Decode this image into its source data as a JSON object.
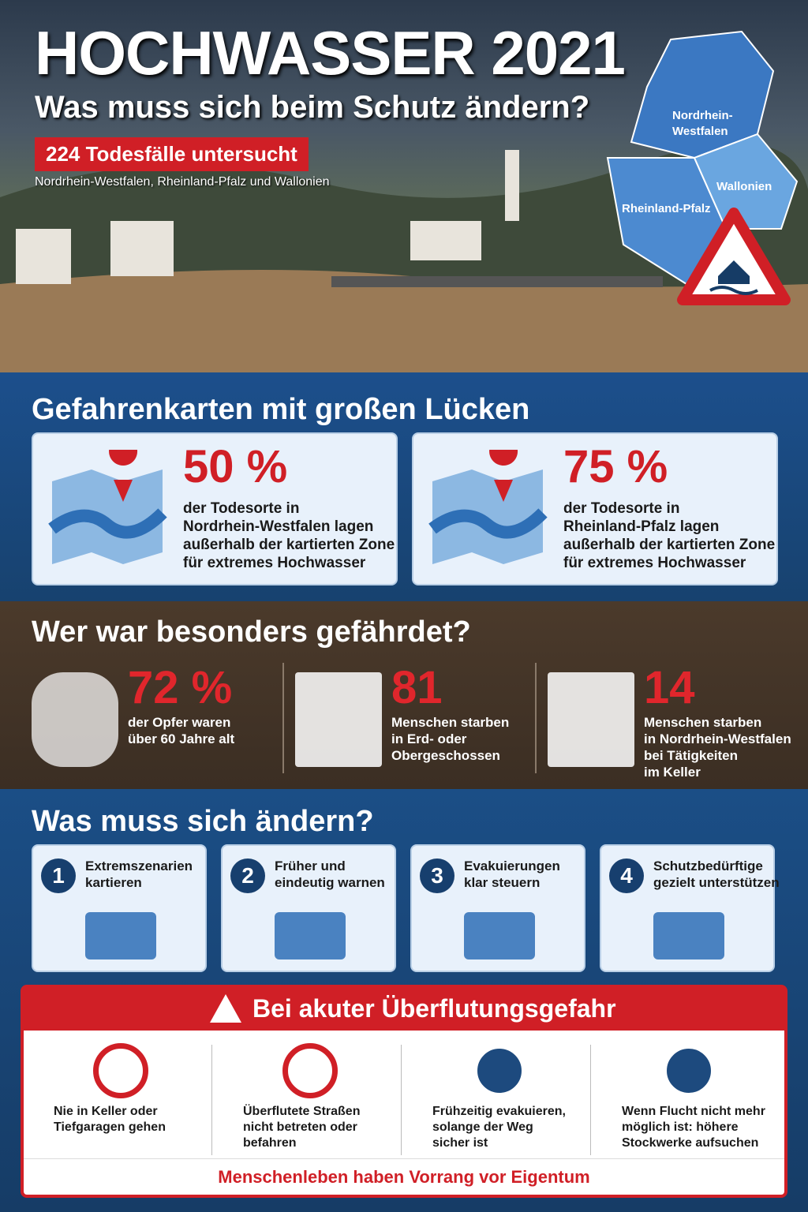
{
  "header": {
    "title": "HOCHWASSER 2021",
    "subtitle": "Was muss sich beim Schutz ändern?",
    "badge": "224 Todesfälle untersucht",
    "regions": "Nordrhein-Westfalen, Rheinland-Pfalz und Wallonien",
    "map_labels": {
      "nrw": [
        "Nordrhein-",
        "Westfalen"
      ],
      "rlp": "Rheinland-Pfalz",
      "wallonia": "Wallonien"
    }
  },
  "maps_section": {
    "title": "Gefahrenkarten mit großen Lücken",
    "cards": [
      {
        "value": "50 %",
        "lines": [
          "der Todesorte in",
          "Nordrhein-Westfalen lagen",
          "außerhalb der kartierten Zone",
          "für extremes Hochwasser"
        ]
      },
      {
        "value": "75 %",
        "lines": [
          "der Todesorte in",
          "Rheinland-Pfalz lagen",
          "außerhalb der kartierten Zone",
          "für extremes Hochwasser"
        ]
      }
    ]
  },
  "risk_section": {
    "title": "Wer war besonders gefährdet?",
    "stats": [
      {
        "value": "72 %",
        "lines": [
          "der Opfer waren",
          "über 60 Jahre alt"
        ]
      },
      {
        "value": "81",
        "lines": [
          "Menschen starben",
          "in Erd- oder",
          "Obergeschossen"
        ]
      },
      {
        "value": "14",
        "lines": [
          "Menschen starben",
          "in Nordrhein-Westfalen",
          "bei Tätigkeiten",
          "im Keller"
        ]
      }
    ]
  },
  "change_section": {
    "title": "Was muss sich ändern?",
    "items": [
      {
        "number": "1",
        "lines": [
          "Extremszenarien",
          "kartieren"
        ]
      },
      {
        "number": "2",
        "lines": [
          "Früher und",
          "eindeutig warnen"
        ]
      },
      {
        "number": "3",
        "lines": [
          "Evakuierungen",
          "klar steuern"
        ]
      },
      {
        "number": "4",
        "lines": [
          "Schutzbedürftige",
          "gezielt unterstützen"
        ]
      }
    ]
  },
  "warning": {
    "title": "Bei akuter Überflutungsgefahr",
    "items": [
      {
        "lines": [
          "Nie in Keller oder",
          "Tiefgaragen gehen"
        ]
      },
      {
        "lines": [
          "Überflutete Straßen",
          "nicht betreten oder",
          "befahren"
        ]
      },
      {
        "lines": [
          "Frühzeitig evakuieren,",
          "solange der Weg",
          "sicher ist"
        ]
      },
      {
        "lines": [
          "Wenn Flucht nicht mehr",
          "möglich ist: höhere",
          "Stockwerke aufsuchen"
        ]
      }
    ],
    "footer": "Menschenleben haben Vorrang vor Eigentum"
  }
}
